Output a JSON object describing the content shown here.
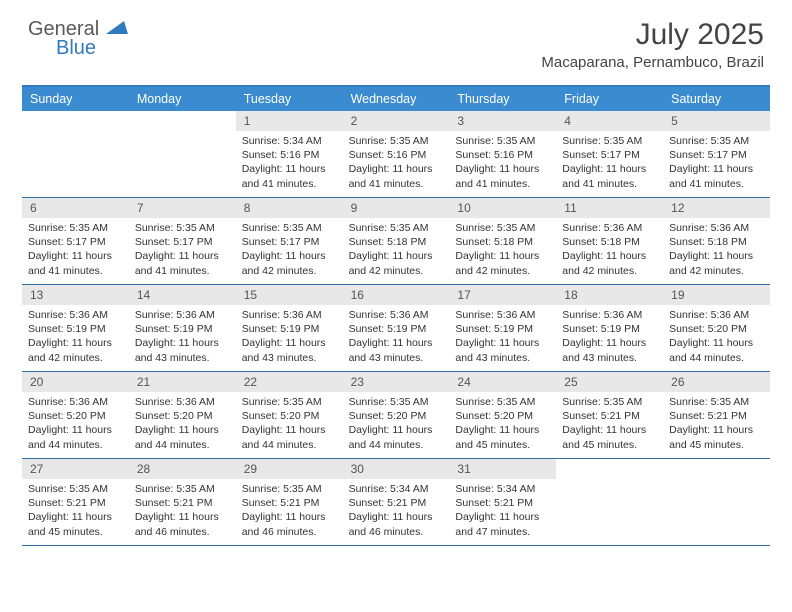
{
  "logo": {
    "part1": "General",
    "part2": "Blue"
  },
  "title": "July 2025",
  "location": "Macaparana, Pernambuco, Brazil",
  "colors": {
    "header_bg": "#3b8bd0",
    "header_text": "#ffffff",
    "border": "#2f6fa8",
    "daynum_bg": "#e8e8e8",
    "text": "#333333",
    "logo_gray": "#5a5a5a",
    "logo_blue": "#2f7bbf"
  },
  "day_names": [
    "Sunday",
    "Monday",
    "Tuesday",
    "Wednesday",
    "Thursday",
    "Friday",
    "Saturday"
  ],
  "weeks": [
    [
      null,
      null,
      {
        "n": "1",
        "l1": "Sunrise: 5:34 AM",
        "l2": "Sunset: 5:16 PM",
        "l3": "Daylight: 11 hours",
        "l4": "and 41 minutes."
      },
      {
        "n": "2",
        "l1": "Sunrise: 5:35 AM",
        "l2": "Sunset: 5:16 PM",
        "l3": "Daylight: 11 hours",
        "l4": "and 41 minutes."
      },
      {
        "n": "3",
        "l1": "Sunrise: 5:35 AM",
        "l2": "Sunset: 5:16 PM",
        "l3": "Daylight: 11 hours",
        "l4": "and 41 minutes."
      },
      {
        "n": "4",
        "l1": "Sunrise: 5:35 AM",
        "l2": "Sunset: 5:17 PM",
        "l3": "Daylight: 11 hours",
        "l4": "and 41 minutes."
      },
      {
        "n": "5",
        "l1": "Sunrise: 5:35 AM",
        "l2": "Sunset: 5:17 PM",
        "l3": "Daylight: 11 hours",
        "l4": "and 41 minutes."
      }
    ],
    [
      {
        "n": "6",
        "l1": "Sunrise: 5:35 AM",
        "l2": "Sunset: 5:17 PM",
        "l3": "Daylight: 11 hours",
        "l4": "and 41 minutes."
      },
      {
        "n": "7",
        "l1": "Sunrise: 5:35 AM",
        "l2": "Sunset: 5:17 PM",
        "l3": "Daylight: 11 hours",
        "l4": "and 41 minutes."
      },
      {
        "n": "8",
        "l1": "Sunrise: 5:35 AM",
        "l2": "Sunset: 5:17 PM",
        "l3": "Daylight: 11 hours",
        "l4": "and 42 minutes."
      },
      {
        "n": "9",
        "l1": "Sunrise: 5:35 AM",
        "l2": "Sunset: 5:18 PM",
        "l3": "Daylight: 11 hours",
        "l4": "and 42 minutes."
      },
      {
        "n": "10",
        "l1": "Sunrise: 5:35 AM",
        "l2": "Sunset: 5:18 PM",
        "l3": "Daylight: 11 hours",
        "l4": "and 42 minutes."
      },
      {
        "n": "11",
        "l1": "Sunrise: 5:36 AM",
        "l2": "Sunset: 5:18 PM",
        "l3": "Daylight: 11 hours",
        "l4": "and 42 minutes."
      },
      {
        "n": "12",
        "l1": "Sunrise: 5:36 AM",
        "l2": "Sunset: 5:18 PM",
        "l3": "Daylight: 11 hours",
        "l4": "and 42 minutes."
      }
    ],
    [
      {
        "n": "13",
        "l1": "Sunrise: 5:36 AM",
        "l2": "Sunset: 5:19 PM",
        "l3": "Daylight: 11 hours",
        "l4": "and 42 minutes."
      },
      {
        "n": "14",
        "l1": "Sunrise: 5:36 AM",
        "l2": "Sunset: 5:19 PM",
        "l3": "Daylight: 11 hours",
        "l4": "and 43 minutes."
      },
      {
        "n": "15",
        "l1": "Sunrise: 5:36 AM",
        "l2": "Sunset: 5:19 PM",
        "l3": "Daylight: 11 hours",
        "l4": "and 43 minutes."
      },
      {
        "n": "16",
        "l1": "Sunrise: 5:36 AM",
        "l2": "Sunset: 5:19 PM",
        "l3": "Daylight: 11 hours",
        "l4": "and 43 minutes."
      },
      {
        "n": "17",
        "l1": "Sunrise: 5:36 AM",
        "l2": "Sunset: 5:19 PM",
        "l3": "Daylight: 11 hours",
        "l4": "and 43 minutes."
      },
      {
        "n": "18",
        "l1": "Sunrise: 5:36 AM",
        "l2": "Sunset: 5:19 PM",
        "l3": "Daylight: 11 hours",
        "l4": "and 43 minutes."
      },
      {
        "n": "19",
        "l1": "Sunrise: 5:36 AM",
        "l2": "Sunset: 5:20 PM",
        "l3": "Daylight: 11 hours",
        "l4": "and 44 minutes."
      }
    ],
    [
      {
        "n": "20",
        "l1": "Sunrise: 5:36 AM",
        "l2": "Sunset: 5:20 PM",
        "l3": "Daylight: 11 hours",
        "l4": "and 44 minutes."
      },
      {
        "n": "21",
        "l1": "Sunrise: 5:36 AM",
        "l2": "Sunset: 5:20 PM",
        "l3": "Daylight: 11 hours",
        "l4": "and 44 minutes."
      },
      {
        "n": "22",
        "l1": "Sunrise: 5:35 AM",
        "l2": "Sunset: 5:20 PM",
        "l3": "Daylight: 11 hours",
        "l4": "and 44 minutes."
      },
      {
        "n": "23",
        "l1": "Sunrise: 5:35 AM",
        "l2": "Sunset: 5:20 PM",
        "l3": "Daylight: 11 hours",
        "l4": "and 44 minutes."
      },
      {
        "n": "24",
        "l1": "Sunrise: 5:35 AM",
        "l2": "Sunset: 5:20 PM",
        "l3": "Daylight: 11 hours",
        "l4": "and 45 minutes."
      },
      {
        "n": "25",
        "l1": "Sunrise: 5:35 AM",
        "l2": "Sunset: 5:21 PM",
        "l3": "Daylight: 11 hours",
        "l4": "and 45 minutes."
      },
      {
        "n": "26",
        "l1": "Sunrise: 5:35 AM",
        "l2": "Sunset: 5:21 PM",
        "l3": "Daylight: 11 hours",
        "l4": "and 45 minutes."
      }
    ],
    [
      {
        "n": "27",
        "l1": "Sunrise: 5:35 AM",
        "l2": "Sunset: 5:21 PM",
        "l3": "Daylight: 11 hours",
        "l4": "and 45 minutes."
      },
      {
        "n": "28",
        "l1": "Sunrise: 5:35 AM",
        "l2": "Sunset: 5:21 PM",
        "l3": "Daylight: 11 hours",
        "l4": "and 46 minutes."
      },
      {
        "n": "29",
        "l1": "Sunrise: 5:35 AM",
        "l2": "Sunset: 5:21 PM",
        "l3": "Daylight: 11 hours",
        "l4": "and 46 minutes."
      },
      {
        "n": "30",
        "l1": "Sunrise: 5:34 AM",
        "l2": "Sunset: 5:21 PM",
        "l3": "Daylight: 11 hours",
        "l4": "and 46 minutes."
      },
      {
        "n": "31",
        "l1": "Sunrise: 5:34 AM",
        "l2": "Sunset: 5:21 PM",
        "l3": "Daylight: 11 hours",
        "l4": "and 47 minutes."
      },
      null,
      null
    ]
  ]
}
